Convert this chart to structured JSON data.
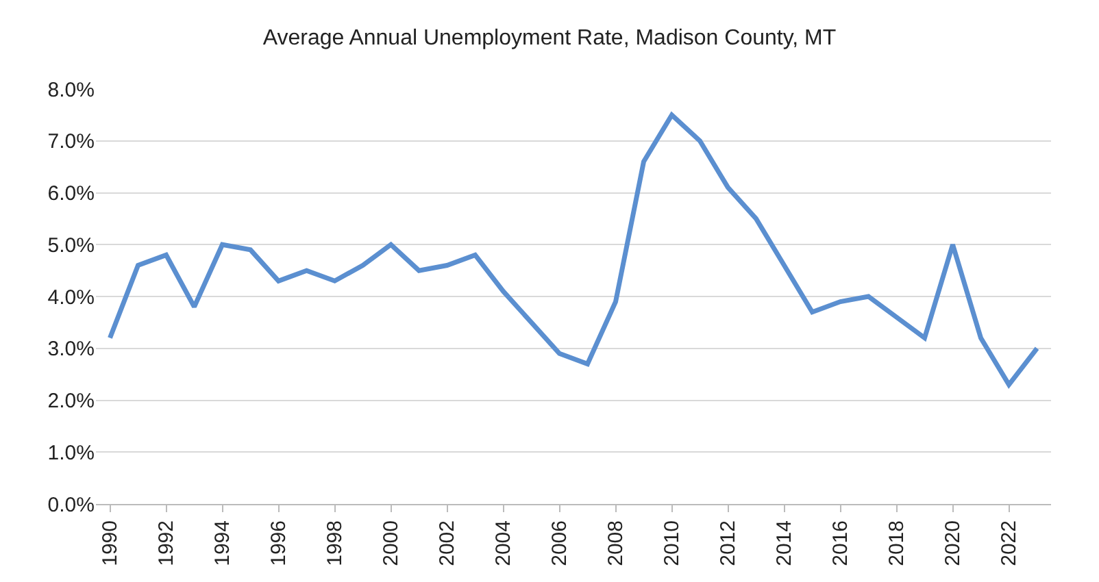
{
  "chart_data": {
    "type": "line",
    "title": "Average Annual Unemployment Rate, Madison County, MT",
    "categories": [
      "1990",
      null,
      "1992",
      null,
      "1994",
      null,
      "1996",
      null,
      "1998",
      null,
      "2000",
      null,
      "2002",
      null,
      "2004",
      null,
      "2006",
      null,
      "2008",
      null,
      "2010",
      null,
      "2012",
      null,
      "2014",
      null,
      "2016",
      null,
      "2018",
      null,
      "2020",
      null,
      "2022",
      null
    ],
    "series": [
      {
        "color": "#5b8fd0",
        "values": [
          3.2,
          4.6,
          4.8,
          3.8,
          5.0,
          4.9,
          4.3,
          4.5,
          4.3,
          4.6,
          5.0,
          4.5,
          4.6,
          4.8,
          4.1,
          3.5,
          2.9,
          2.7,
          3.9,
          6.6,
          7.5,
          7.0,
          6.1,
          5.5,
          4.6,
          3.7,
          3.9,
          4.0,
          3.6,
          3.2,
          5.0,
          3.2,
          2.3,
          3.0
        ]
      }
    ],
    "ylim": [
      0,
      8
    ],
    "yticks": [
      {
        "value": 0,
        "label": "0.0%"
      },
      {
        "value": 1,
        "label": "1.0%"
      },
      {
        "value": 2,
        "label": "2.0%"
      },
      {
        "value": 3,
        "label": "3.0%"
      },
      {
        "value": 4,
        "label": "4.0%"
      },
      {
        "value": 5,
        "label": "5.0%"
      },
      {
        "value": 6,
        "label": "6.0%"
      },
      {
        "value": 7,
        "label": "7.0%"
      },
      {
        "value": 8,
        "label": "8.0%"
      }
    ],
    "grid": "y",
    "legend": false,
    "marker": "none",
    "line_style": "solid"
  }
}
